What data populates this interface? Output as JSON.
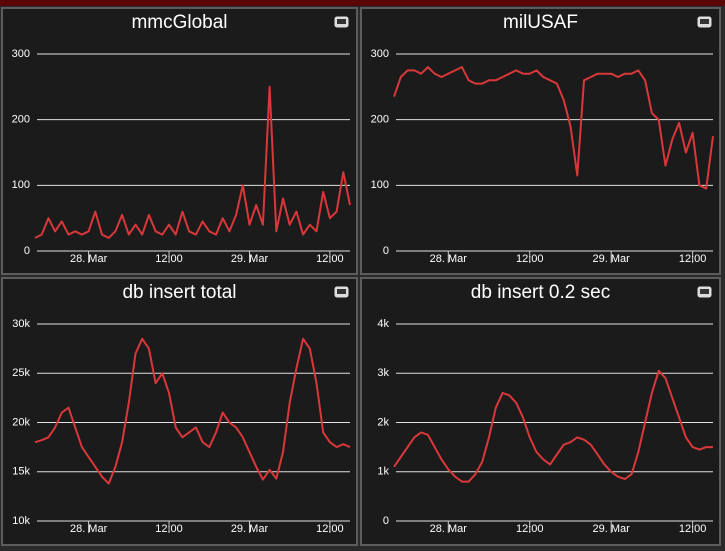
{
  "chart_data": [
    {
      "type": "line",
      "title": "mmcGlobal",
      "x": [
        16,
        17,
        18,
        19,
        20,
        21,
        22,
        23,
        24,
        25,
        26,
        27,
        28,
        29,
        30,
        31,
        32,
        33,
        34,
        35,
        36,
        37,
        38,
        39,
        40,
        41,
        42,
        43,
        44,
        45,
        46,
        47,
        48,
        49,
        50,
        51,
        52,
        53,
        54,
        55,
        56,
        57,
        58,
        59,
        60,
        61,
        62,
        63
      ],
      "series": [
        {
          "color": "#d9383a",
          "values": [
            20,
            25,
            50,
            30,
            45,
            25,
            30,
            25,
            30,
            60,
            25,
            20,
            30,
            55,
            25,
            40,
            25,
            55,
            30,
            25,
            40,
            25,
            60,
            30,
            25,
            45,
            30,
            25,
            50,
            30,
            55,
            100,
            40,
            70,
            40,
            250,
            30,
            80,
            40,
            60,
            25,
            40,
            30,
            90,
            50,
            60,
            120,
            70
          ]
        }
      ],
      "xlim": [
        16,
        63
      ],
      "xticks": [
        {
          "value": 24,
          "label": "28. Mar"
        },
        {
          "value": 36,
          "label": "12:00"
        },
        {
          "value": 48,
          "label": "29. Mar"
        },
        {
          "value": 60,
          "label": "12:00"
        }
      ],
      "ylim": [
        0,
        300
      ],
      "yticks": [
        0,
        100,
        200,
        300
      ],
      "grid": true
    },
    {
      "type": "line",
      "title": "milUSAF",
      "x": [
        16,
        17,
        18,
        19,
        20,
        21,
        22,
        23,
        24,
        25,
        26,
        27,
        28,
        29,
        30,
        31,
        32,
        33,
        34,
        35,
        36,
        37,
        38,
        39,
        40,
        41,
        42,
        43,
        44,
        45,
        46,
        47,
        48,
        49,
        50,
        51,
        52,
        53,
        54,
        55,
        56,
        57,
        58,
        59,
        60,
        61,
        62,
        63
      ],
      "series": [
        {
          "color": "#d9383a",
          "values": [
            235,
            265,
            275,
            275,
            270,
            280,
            270,
            265,
            270,
            275,
            280,
            260,
            255,
            255,
            260,
            260,
            265,
            270,
            275,
            270,
            270,
            275,
            265,
            260,
            255,
            230,
            190,
            115,
            260,
            265,
            270,
            270,
            270,
            265,
            270,
            270,
            275,
            260,
            210,
            200,
            130,
            170,
            195,
            150,
            180,
            100,
            95,
            175
          ]
        }
      ],
      "xlim": [
        16,
        63
      ],
      "xticks": [
        {
          "value": 24,
          "label": "28. Mar"
        },
        {
          "value": 36,
          "label": "12:00"
        },
        {
          "value": 48,
          "label": "29. Mar"
        },
        {
          "value": 60,
          "label": "12:00"
        }
      ],
      "ylim": [
        0,
        300
      ],
      "yticks": [
        0,
        100,
        200,
        300
      ],
      "grid": true
    },
    {
      "type": "line",
      "title": "db insert total",
      "x": [
        16,
        17,
        18,
        19,
        20,
        21,
        22,
        23,
        24,
        25,
        26,
        27,
        28,
        29,
        30,
        31,
        32,
        33,
        34,
        35,
        36,
        37,
        38,
        39,
        40,
        41,
        42,
        43,
        44,
        45,
        46,
        47,
        48,
        49,
        50,
        51,
        52,
        53,
        54,
        55,
        56,
        57,
        58,
        59,
        60,
        61,
        62,
        63
      ],
      "series": [
        {
          "color": "#d9383a",
          "values": [
            18000,
            18200,
            18500,
            19500,
            21000,
            21500,
            19500,
            17500,
            16500,
            15500,
            14500,
            13800,
            15500,
            18000,
            22000,
            27000,
            28500,
            27500,
            24000,
            25000,
            23000,
            19500,
            18500,
            19000,
            19500,
            18000,
            17500,
            19000,
            21000,
            20000,
            19500,
            18500,
            17000,
            15500,
            14200,
            15200,
            14300,
            17000,
            22000,
            25500,
            28500,
            27500,
            24000,
            19000,
            18000,
            17500,
            17800,
            17500
          ]
        }
      ],
      "xlim": [
        16,
        63
      ],
      "xticks": [
        {
          "value": 24,
          "label": "28. Mar"
        },
        {
          "value": 36,
          "label": "12:00"
        },
        {
          "value": 48,
          "label": "29. Mar"
        },
        {
          "value": 60,
          "label": "12:00"
        }
      ],
      "ylim": [
        10000,
        30000
      ],
      "yticks": [
        {
          "value": 10000,
          "label": "10k"
        },
        {
          "value": 15000,
          "label": "15k"
        },
        {
          "value": 20000,
          "label": "20k"
        },
        {
          "value": 25000,
          "label": "25k"
        },
        {
          "value": 30000,
          "label": "30k"
        }
      ],
      "grid": true
    },
    {
      "type": "line",
      "title": "db insert 0.2 sec",
      "x": [
        16,
        17,
        18,
        19,
        20,
        21,
        22,
        23,
        24,
        25,
        26,
        27,
        28,
        29,
        30,
        31,
        32,
        33,
        34,
        35,
        36,
        37,
        38,
        39,
        40,
        41,
        42,
        43,
        44,
        45,
        46,
        47,
        48,
        49,
        50,
        51,
        52,
        53,
        54,
        55,
        56,
        57,
        58,
        59,
        60,
        61,
        62,
        63
      ],
      "series": [
        {
          "color": "#d9383a",
          "values": [
            1100,
            1300,
            1500,
            1700,
            1800,
            1750,
            1500,
            1250,
            1050,
            900,
            800,
            800,
            950,
            1200,
            1700,
            2300,
            2600,
            2550,
            2400,
            2100,
            1700,
            1400,
            1250,
            1150,
            1350,
            1550,
            1600,
            1700,
            1650,
            1550,
            1350,
            1150,
            1000,
            900,
            850,
            950,
            1400,
            2000,
            2600,
            3050,
            2900,
            2500,
            2100,
            1700,
            1500,
            1450,
            1500,
            1500
          ]
        }
      ],
      "xlim": [
        16,
        63
      ],
      "xticks": [
        {
          "value": 24,
          "label": "28. Mar"
        },
        {
          "value": 36,
          "label": "12:00"
        },
        {
          "value": 48,
          "label": "29. Mar"
        },
        {
          "value": 60,
          "label": "12:00"
        }
      ],
      "ylim": [
        0,
        4000
      ],
      "yticks": [
        0,
        {
          "value": 1000,
          "label": "1k"
        },
        {
          "value": 2000,
          "label": "2k"
        },
        {
          "value": 3000,
          "label": "3k"
        },
        {
          "value": 4000,
          "label": "4k"
        }
      ],
      "grid": true
    }
  ]
}
